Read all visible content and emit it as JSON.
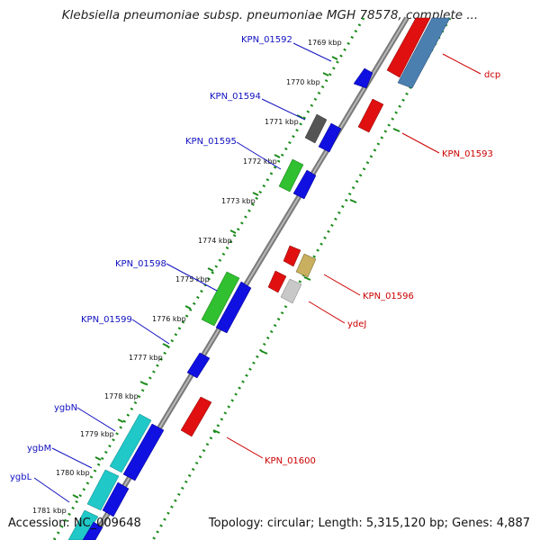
{
  "title": "Klebsiella pneumoniae subsp. pneumoniae MGH 78578, complete ...",
  "footer": {
    "accession": "Accession: NC_009648",
    "summary": "Topology: circular; Length: 5,315,120 bp; Genes: 4,887"
  },
  "colors": {
    "backbone": "#888888",
    "tick_track": "#1a8a1a",
    "forward_label": "#1010c0",
    "reverse_label": "#cc0000"
  },
  "ticks": [
    "1769 kbp",
    "1770 kbp",
    "1771 kbp",
    "1772 kbp",
    "1773 kbp",
    "1774 kbp",
    "1775 kbp",
    "1776 kbp",
    "1777 kbp",
    "1778 kbp",
    "1779 kbp",
    "1780 kbp",
    "1781 kbp"
  ],
  "labels": {
    "forward": [
      "KPN_01592",
      "KPN_01594",
      "KPN_01595",
      "KPN_01598",
      "KPN_01599",
      "ygbN",
      "ygbM",
      "ygbL"
    ],
    "reverse": [
      "dcp",
      "KPN_01593",
      "KPN_01596",
      "ydeJ",
      "KPN_01600"
    ]
  }
}
